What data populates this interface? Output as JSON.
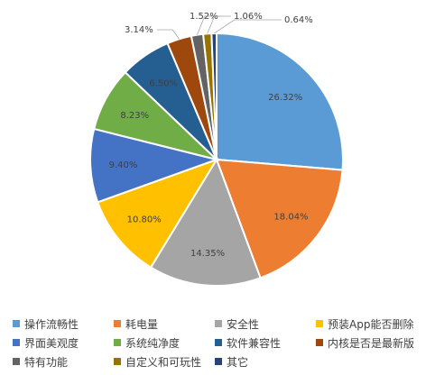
{
  "chart_data": {
    "type": "pie",
    "title": "",
    "slices": [
      {
        "label": "操作流畅性",
        "value": 26.32,
        "display": "26.32%",
        "color": "#5B9BD5"
      },
      {
        "label": "耗电量",
        "value": 18.04,
        "display": "18.04%",
        "color": "#ED7D31"
      },
      {
        "label": "安全性",
        "value": 14.35,
        "display": "14.35%",
        "color": "#A5A5A5"
      },
      {
        "label": "预装App能否删除",
        "value": 10.8,
        "display": "10.80%",
        "color": "#FFC000"
      },
      {
        "label": "界面美观度",
        "value": 9.4,
        "display": "9.40%",
        "color": "#4472C4"
      },
      {
        "label": "系统纯净度",
        "value": 8.23,
        "display": "8.23%",
        "color": "#70AD47"
      },
      {
        "label": "软件兼容性",
        "value": 6.5,
        "display": "6.50%",
        "color": "#255E91"
      },
      {
        "label": "内核是否是最新版",
        "value": 3.14,
        "display": "3.14%",
        "color": "#9E480E"
      },
      {
        "label": "特有功能",
        "value": 1.52,
        "display": "1.52%",
        "color": "#636363"
      },
      {
        "label": "自定义和可玩性",
        "value": 1.06,
        "display": "1.06%",
        "color": "#997300"
      },
      {
        "label": "其它",
        "value": 0.64,
        "display": "0.64%",
        "color": "#264478"
      }
    ],
    "legend_position": "bottom"
  }
}
